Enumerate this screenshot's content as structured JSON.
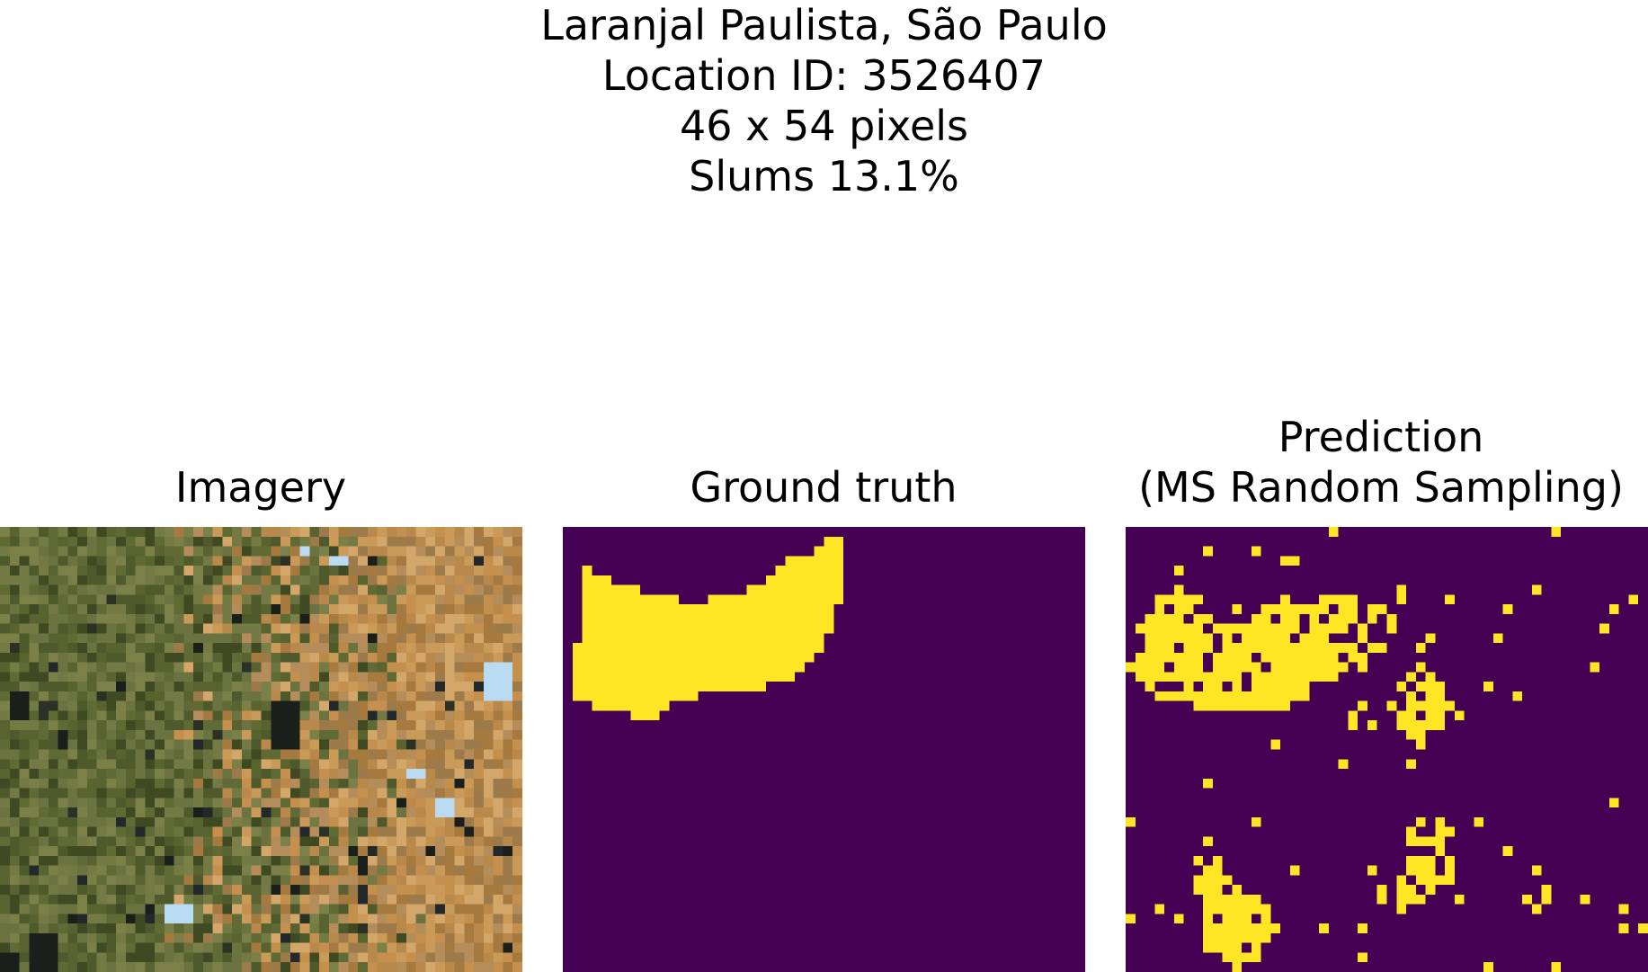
{
  "figure": {
    "title_lines": [
      "Laranjal Paulista, São Paulo",
      "Location ID: 3526407",
      "46 x 54 pixels",
      "Slums 13.1%"
    ]
  },
  "panels": [
    {
      "title_lines": [
        "Imagery"
      ]
    },
    {
      "title_lines": [
        "Ground truth"
      ]
    },
    {
      "title_lines": [
        "Prediction",
        "(MS Random Sampling)"
      ]
    }
  ],
  "colors": {
    "background_class": "#440154",
    "slum_class": "#fde725"
  }
}
